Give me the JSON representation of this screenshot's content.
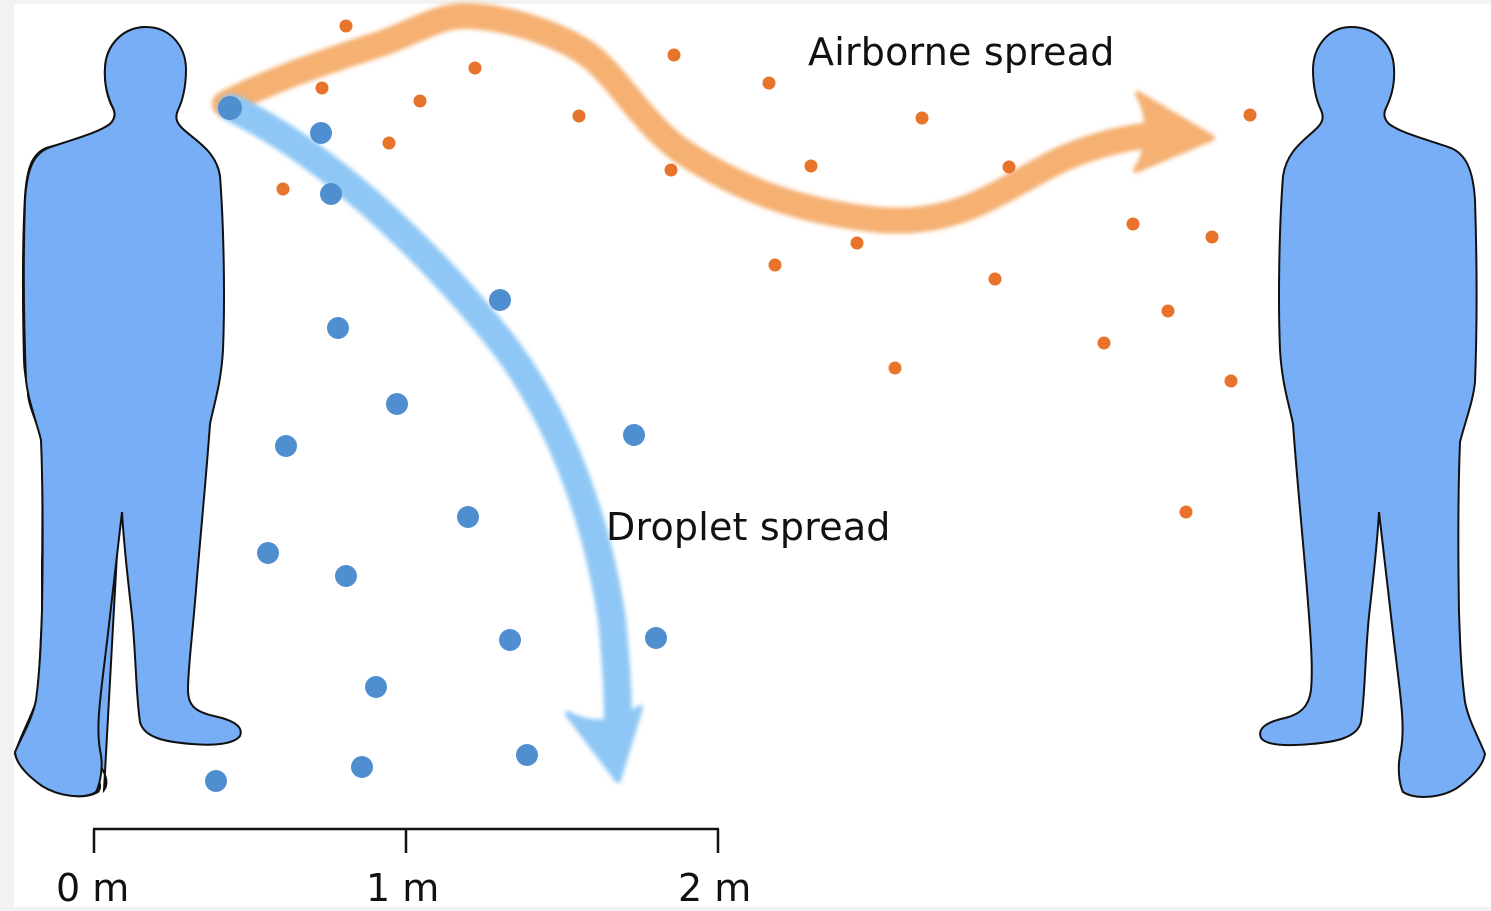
{
  "labels": {
    "airborne": "Airborne spread",
    "droplet": "Droplet spread"
  },
  "scale": {
    "ticks": [
      "0 m",
      "1 m",
      "2 m"
    ]
  },
  "colors": {
    "person": "#78aef5",
    "person_outline": "#111111",
    "droplet": "#4f8fd0",
    "aerosol": "#e8732a",
    "droplet_arrow": "#8ec7f5",
    "airborne_arrow": "#f5b072"
  }
}
